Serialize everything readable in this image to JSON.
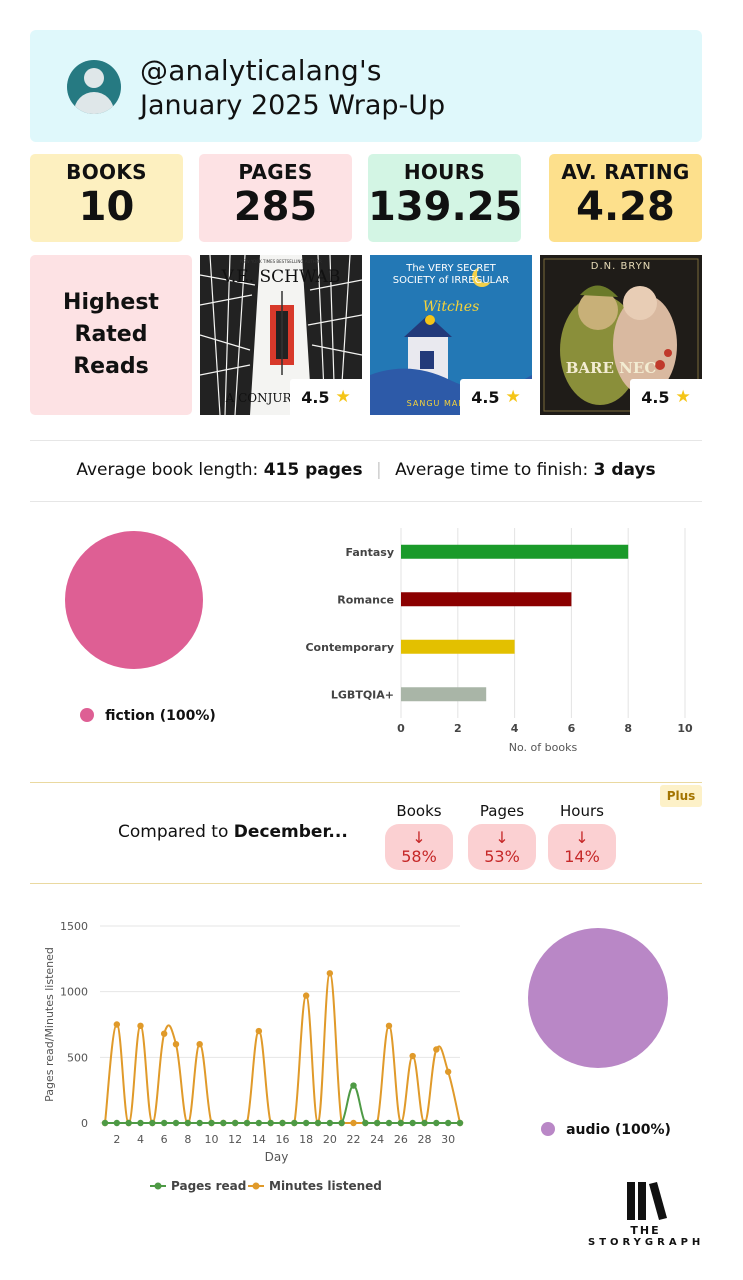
{
  "header": {
    "username": "@analyticalang's",
    "subtitle": "January 2025 Wrap-Up"
  },
  "stats": [
    {
      "label": "BOOKS",
      "value": "10",
      "color": "#fdf0c0"
    },
    {
      "label": "PAGES",
      "value": "285",
      "color": "#fde2e4"
    },
    {
      "label": "HOURS",
      "value": "139.25",
      "color": "#d3f5e4"
    },
    {
      "label": "AV. RATING",
      "value": "4.28",
      "color": "#fde08c"
    }
  ],
  "highest_rated": {
    "label": "Highest Rated Reads",
    "books": [
      {
        "cover_top": "NEW YORK TIMES BESTSELLING AUTHOR",
        "cover_author": "V.E. SCHWAB",
        "cover_title": "A CONJURING",
        "rating": "4.5"
      },
      {
        "cover_top": "The VERY SECRET SOCIETY of IRREGULAR",
        "cover_title": "Witches",
        "cover_author": "SANGU MAN",
        "rating": "4.5"
      },
      {
        "cover_author": "D.N. BRYN",
        "cover_title": "BARE NEC",
        "rating": "4.5"
      }
    ]
  },
  "averages": {
    "length_label": "Average book length:",
    "length_value": "415 pages",
    "time_label": "Average time to finish:",
    "time_value": "3 days"
  },
  "fiction_pie": {
    "legend": "fiction (100%)",
    "color": "#de5f94"
  },
  "genre_chart": {
    "chart_data": {
      "type": "bar",
      "orientation": "horizontal",
      "categories": [
        "Fantasy",
        "Romance",
        "Contemporary",
        "LGBTQIA+"
      ],
      "values": [
        8,
        6,
        4,
        3
      ],
      "colors": [
        "#1a9a2a",
        "#8b0000",
        "#e3c000",
        "#a9b5a7"
      ],
      "xlabel": "No. of books",
      "xlim": [
        0,
        10
      ],
      "xticks": [
        0,
        2,
        4,
        6,
        8,
        10
      ]
    }
  },
  "compare": {
    "label_prefix": "Compared to",
    "label_month": "December...",
    "plus": "Plus",
    "columns": [
      {
        "header": "Books",
        "value": "↓ 58%"
      },
      {
        "header": "Pages",
        "value": "↓ 53%"
      },
      {
        "header": "Hours",
        "value": "↓ 14%"
      }
    ]
  },
  "daily_chart": {
    "chart_data": {
      "type": "line",
      "xlabel": "Day",
      "ylabel": "Pages read/Minutes listened",
      "x": [
        1,
        2,
        3,
        4,
        5,
        6,
        7,
        8,
        9,
        10,
        11,
        12,
        13,
        14,
        15,
        16,
        17,
        18,
        19,
        20,
        21,
        22,
        23,
        24,
        25,
        26,
        27,
        28,
        29,
        30,
        31
      ],
      "xticks": [
        2,
        4,
        6,
        8,
        10,
        12,
        14,
        16,
        18,
        20,
        22,
        24,
        26,
        28,
        30
      ],
      "ylim": [
        0,
        1500
      ],
      "yticks": [
        0,
        500,
        1000,
        1500
      ],
      "grid": true,
      "legend_position": "bottom",
      "series": [
        {
          "name": "Pages read",
          "color": "#4e9a45",
          "values": [
            0,
            0,
            0,
            0,
            0,
            0,
            0,
            0,
            0,
            0,
            0,
            0,
            0,
            0,
            0,
            0,
            0,
            0,
            0,
            0,
            0,
            285,
            0,
            0,
            0,
            0,
            0,
            0,
            0,
            0,
            0
          ]
        },
        {
          "name": "Minutes listened",
          "color": "#e09a2a",
          "values": [
            0,
            750,
            0,
            740,
            0,
            680,
            600,
            0,
            600,
            0,
            0,
            0,
            0,
            700,
            0,
            0,
            0,
            970,
            0,
            1140,
            0,
            0,
            0,
            0,
            740,
            0,
            510,
            0,
            560,
            390,
            0
          ]
        }
      ]
    }
  },
  "format_pie": {
    "legend": "audio (100%)",
    "color": "#b987c6"
  },
  "logo": {
    "the": "THE",
    "name": "STORYGRAPH"
  }
}
